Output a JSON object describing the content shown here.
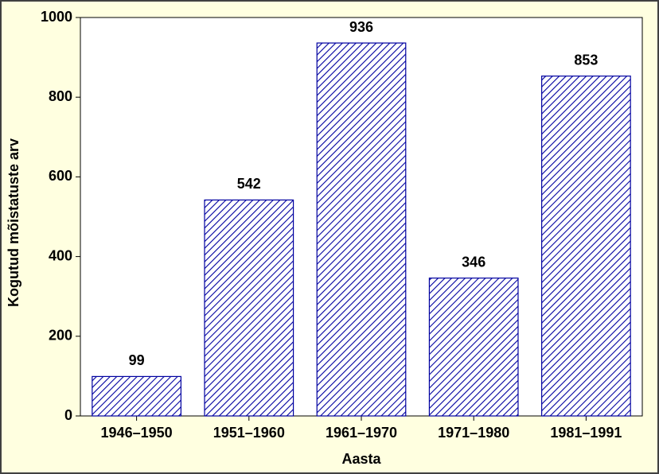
{
  "chart_data": {
    "type": "bar",
    "x_label": "Aasta",
    "y_label": "Kogutud mõistatuste arv",
    "categories": [
      "1946–1950",
      "1951–1960",
      "1961–1970",
      "1971–1980",
      "1981–1991"
    ],
    "values": [
      99,
      542,
      936,
      346,
      853
    ],
    "color": "#0000a0",
    "ylim": [
      0,
      1000
    ],
    "yticks": [
      0,
      200,
      400,
      600,
      800,
      1000
    ]
  }
}
